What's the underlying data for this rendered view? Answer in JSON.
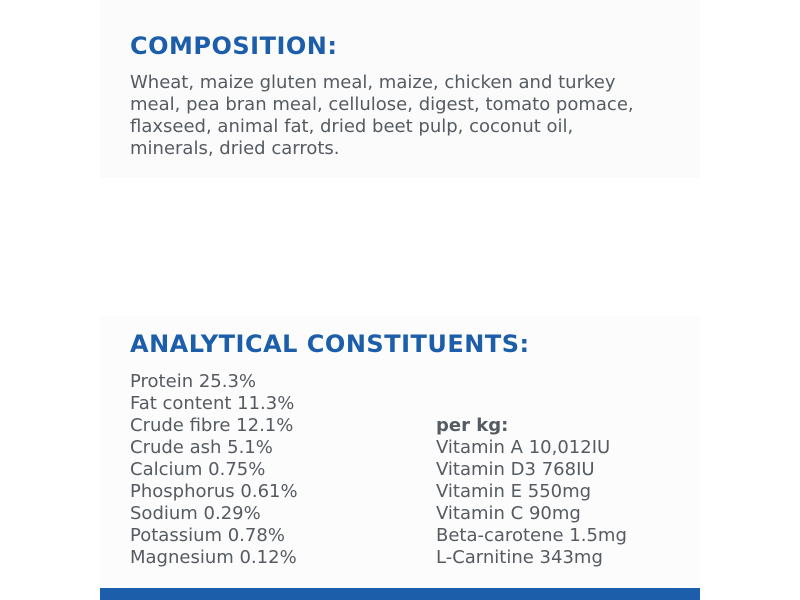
{
  "composition": {
    "heading": "COMPOSITION:",
    "text": "Wheat, maize gluten meal, maize, chicken and turkey meal, pea bran meal, cellulose, digest, tomato pomace, flaxseed, animal fat, dried beet pulp, coconut oil, minerals, dried carrots."
  },
  "analytical": {
    "heading": "ANALYTICAL CONSTITUENTS:",
    "left": [
      "Protein 25.3%",
      "Fat content 11.3%",
      "Crude fibre 12.1%",
      "Crude ash 5.1%",
      "Calcium 0.75%",
      "Phosphorus 0.61%",
      "Sodium 0.29%",
      "Potassium 0.78%",
      "Magnesium 0.12%"
    ],
    "per_kg_label": "per kg:",
    "right": [
      "Vitamin A 10,012IU",
      "Vitamin D3 768IU",
      "Vitamin E 550mg",
      "Vitamin C 90mg",
      "Beta-carotene 1.5mg",
      "L-Carnitine 343mg"
    ]
  },
  "colors": {
    "heading": "#1c5ea9",
    "body_text": "#555b61",
    "bottom_bar": "#1c5ea9"
  }
}
